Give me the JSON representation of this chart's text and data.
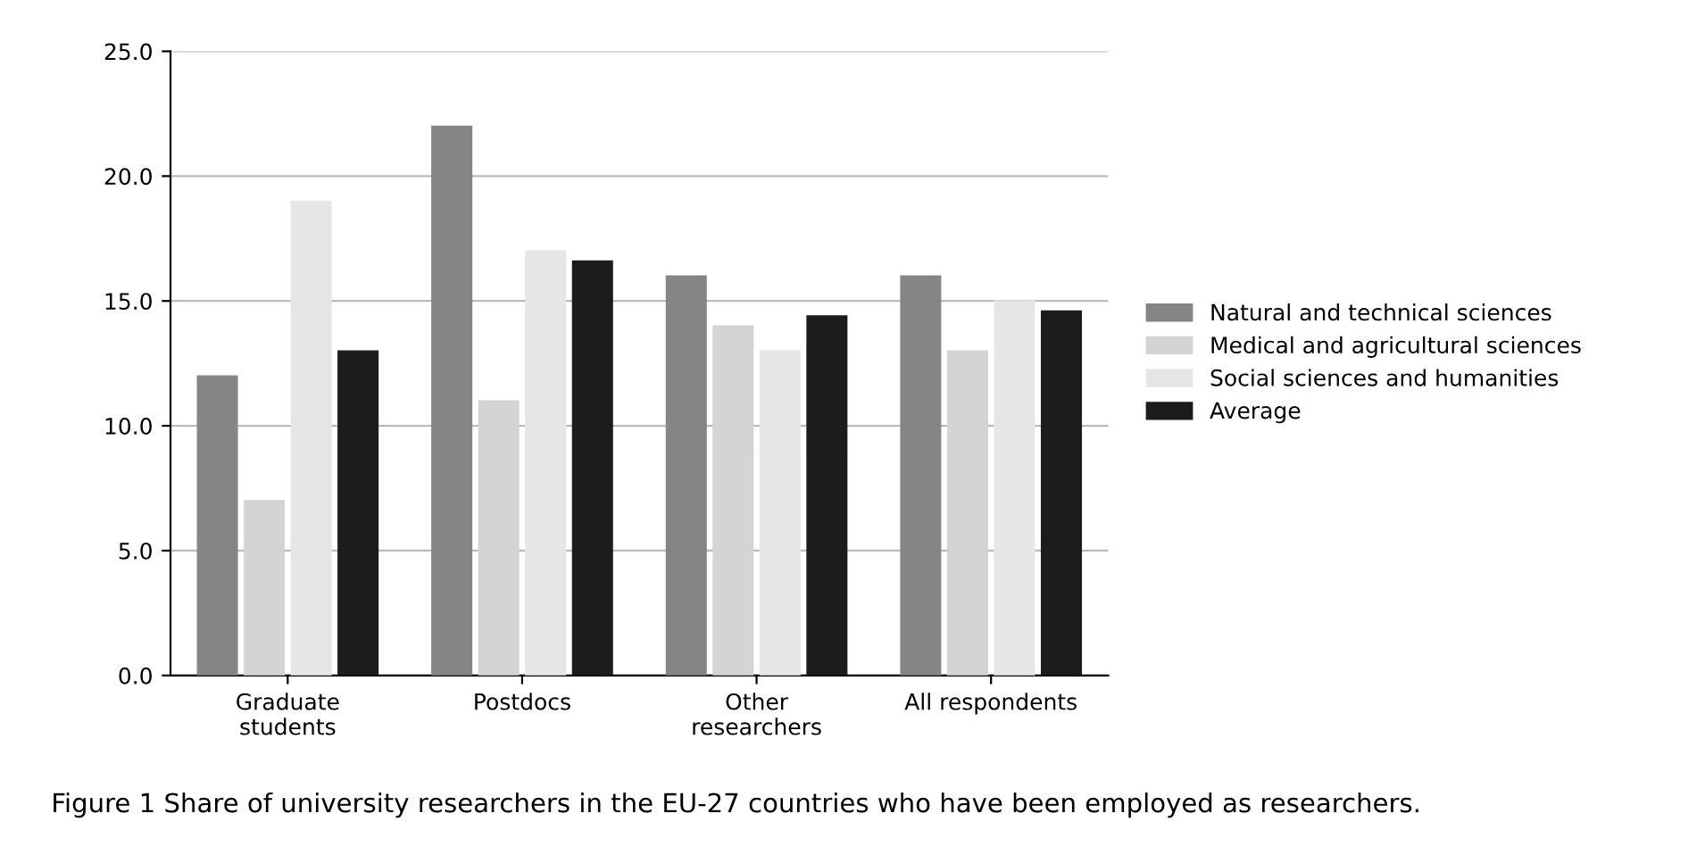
{
  "chart_data": {
    "type": "bar",
    "categories": [
      "Graduate\nstudents",
      "Postdocs",
      "Other\nresearchers",
      "All respondents"
    ],
    "series": [
      {
        "name": "Natural and technical sciences",
        "color": "#858585",
        "values": [
          12,
          22,
          16,
          16
        ]
      },
      {
        "name": "Medical and agricultural sciences",
        "color": "#d4d4d4",
        "values": [
          7,
          11,
          14,
          13
        ]
      },
      {
        "name": "Social sciences and humanities",
        "color": "#e6e6e6",
        "values": [
          19,
          17,
          13,
          15
        ]
      },
      {
        "name": "Average",
        "color": "#1c1c1c",
        "values": [
          13,
          16.6,
          14.4,
          14.6
        ]
      }
    ],
    "ylim": [
      0,
      25
    ],
    "yticks": [
      {
        "value": 0,
        "label": "0.0"
      },
      {
        "value": 5,
        "label": "5.0"
      },
      {
        "value": 10,
        "label": "10.0"
      },
      {
        "value": 15,
        "label": "15.0"
      },
      {
        "value": 20,
        "label": "20.0"
      },
      {
        "value": 25,
        "label": "25.0"
      }
    ],
    "grid": "y",
    "legend": "right",
    "annotations": [
      "Figure 1 Share of university researchers in the EU-27 countries who have been employed as researchers."
    ]
  }
}
